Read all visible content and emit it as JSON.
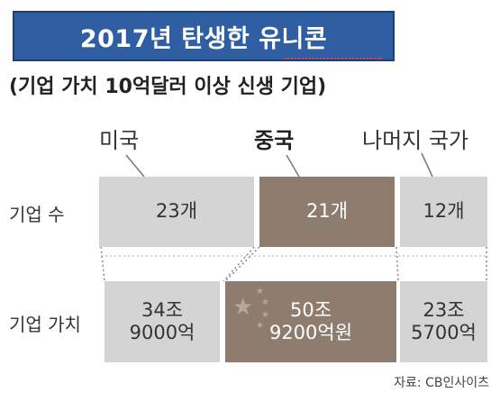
{
  "title": "2017년 탄생한 유니콘",
  "subtitle": "(기업 가치 10억달러 이상 신생 기업)",
  "chart_data": {
    "type": "table",
    "columns": [
      "미국",
      "중국",
      "나머지 국가"
    ],
    "rows": [
      {
        "label": "기업 수",
        "values": [
          "23개",
          "21개",
          "12개"
        ]
      },
      {
        "label": "기업 가치",
        "values": [
          [
            "34조",
            "9000억"
          ],
          [
            "50조",
            "9200억원"
          ],
          [
            "23조",
            "5700억"
          ]
        ]
      }
    ],
    "company_count": [
      23,
      21,
      12
    ],
    "company_value_krw_eok": [
      349000,
      509200,
      235700
    ],
    "highlight_column": "중국"
  },
  "source": "자료: CB인사이츠",
  "colors": {
    "title_bg": "#2f5ea3",
    "cell_gray": "#d4d4d4",
    "cell_highlight": "#8e7c6f"
  },
  "icons": [
    "china-flag-stars-icon"
  ]
}
